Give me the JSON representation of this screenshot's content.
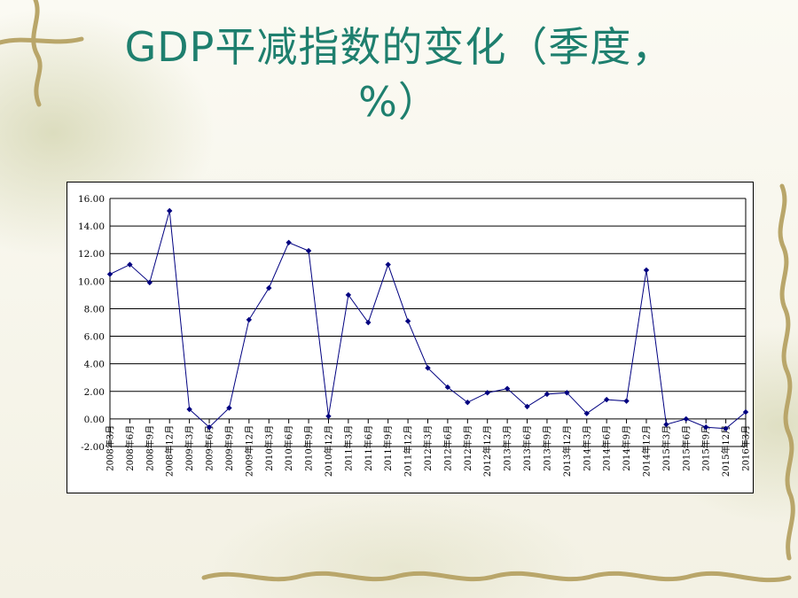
{
  "title_line1": "GDP平减指数的变化（季度，",
  "title_line2": "%）",
  "colors": {
    "title": "#1e7f6e",
    "line": "#000080",
    "grid": "#000000",
    "background": "#f7f5ec",
    "vine": "#b9a66a"
  },
  "chart_data": {
    "type": "line",
    "title": "",
    "xlabel": "",
    "ylabel": "",
    "ylim": [
      -2,
      16
    ],
    "yticks": [
      "16.00",
      "14.00",
      "12.00",
      "10.00",
      "8.00",
      "6.00",
      "4.00",
      "2.00",
      "0.00",
      "-2.00"
    ],
    "ytick_values": [
      16,
      14,
      12,
      10,
      8,
      6,
      4,
      2,
      0,
      -2
    ],
    "grid": "horizontal",
    "legend": "none",
    "categories": [
      "2008年3月",
      "2008年6月",
      "2008年9月",
      "2008年12月",
      "2009年3月",
      "2009年6月",
      "2009年9月",
      "2009年12月",
      "2010年3月",
      "2010年6月",
      "2010年9月",
      "2010年12月",
      "2011年3月",
      "2011年6月",
      "2011年9月",
      "2011年12月",
      "2012年3月",
      "2012年6月",
      "2012年9月",
      "2012年12月",
      "2013年3月",
      "2013年6月",
      "2013年9月",
      "2013年12月",
      "2014年3月",
      "2014年6月",
      "2014年9月",
      "2014年12月",
      "2015年3月",
      "2015年6月",
      "2015年9月",
      "2015年12月",
      "2016年3月"
    ],
    "series": [
      {
        "values": [
          10.5,
          11.2,
          9.9,
          15.1,
          0.7,
          -0.6,
          0.8,
          7.2,
          9.5,
          12.8,
          12.2,
          0.2,
          9.0,
          7.0,
          11.2,
          7.1,
          3.7,
          2.3,
          1.2,
          1.9,
          2.2,
          0.9,
          1.8,
          1.9,
          0.4,
          1.4,
          1.3,
          10.8,
          -0.4,
          0.0,
          -0.6,
          -0.7,
          0.5
        ]
      }
    ]
  }
}
